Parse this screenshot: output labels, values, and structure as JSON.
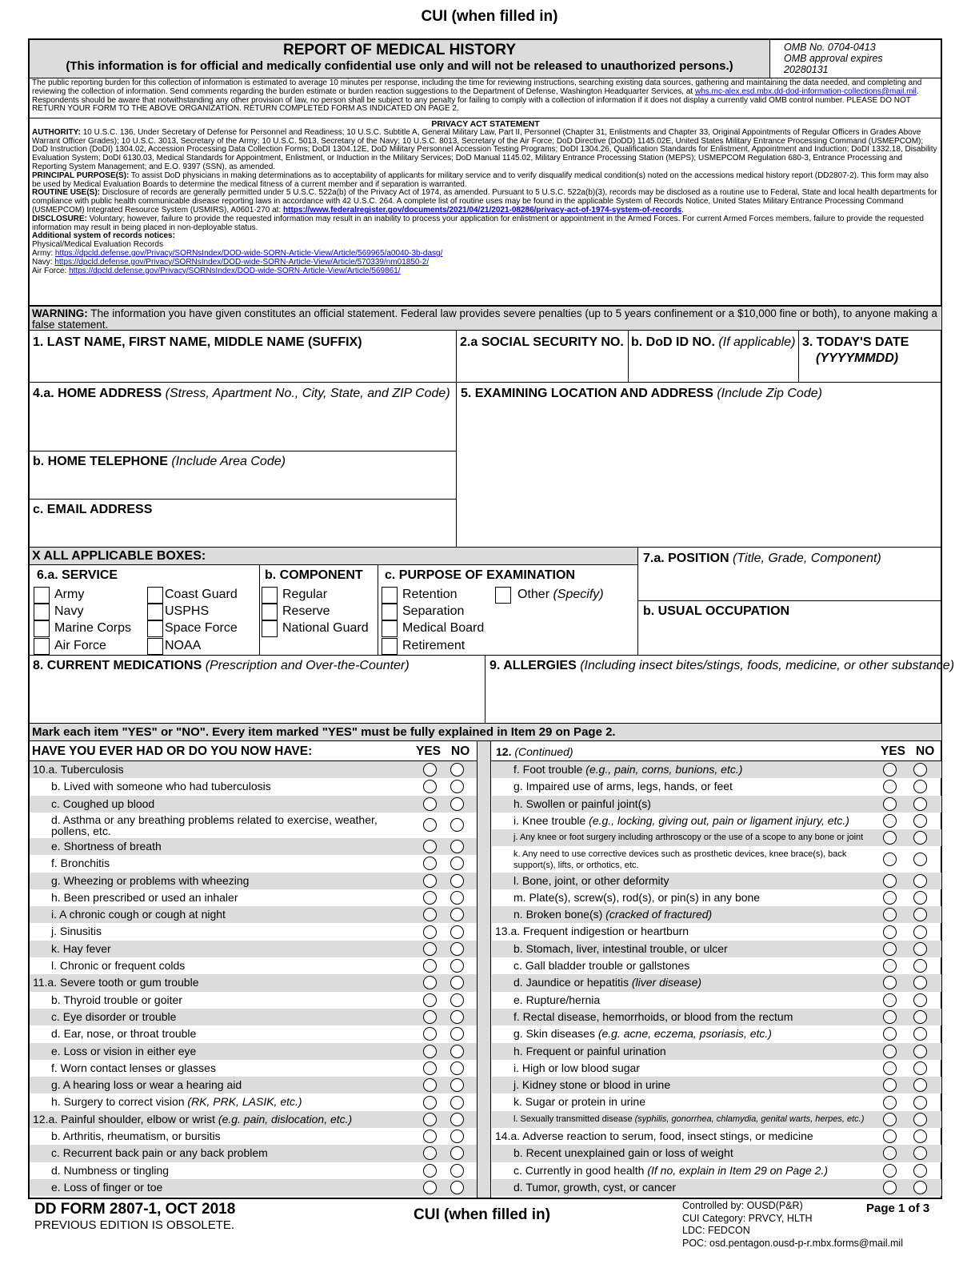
{
  "cui_top": "CUI (when filled in)",
  "header": {
    "title": "REPORT OF MEDICAL HISTORY",
    "subtitle": "(This information is for official and medically confidential use only and will not be released to unauthorized persons.)",
    "omb_no": "OMB No. 0704-0413",
    "omb_expires": "OMB approval expires",
    "omb_date": "20280131"
  },
  "burden": {
    "text": "The public reporting burden for this collection of information is estimated to average 10 minutes per response, including the time for reviewing instructions, searching existing data sources, gathering and maintaining the data needed, and completing and reviewing the collection of information. Send comments regarding the burden estimate or burden reaction suggestions to the Department of Defense, Washington Headquarter Services, at ",
    "email": "whs.mc-alex.esd.mbx.dd-dod-information-collections@mail.mil",
    "text2": ". Respondents should be aware that notwithstanding any other provision of law, no person shall be subject to any penalty for failing to comply with a collection of information if it does not display a currently valid OMB control number. PLEASE DO NOT RETURN YOUR FORM TO THE ABOVE ORGANIZATION. RETURN COMPLETED FORM AS INDICATED ON PAGE 2."
  },
  "privacy": {
    "title": "PRIVACY ACT STATEMENT",
    "authority_label": "AUTHORITY:",
    "authority": " 10 U.S.C. 136, Under Secretary of Defense for Personnel and Readiness; 10 U.S.C. Subtitle A, General Military Law, Part II, Personnel (Chapter 31, Enlistments and Chapter 33, Original Appointments of Regular Officers in Grades Above Warrant Officer Grades); 10 U.S.C. 3013, Secretary of the Army; 10 U.S.C. 5013, Secretary of the Navy; 10 U.S.C. 8013, Secretary of the Air Force; DoD Directive (DoDD) 1145.02E, United States Military Entrance Processing Command (USMEPCOM); DoD Instruction (DoDI) 1304.02, Accession Processing Data Collection Forms; DoDI 1304.12E, DoD Military Personnel Accession Testing Programs; DoDI 1304.26, Qualification Standards for Enlistment, Appointment and Induction; DoDI 1332.18, Disability Evaluation System; DoDI 6130.03, Medical Standards for Appointment, Enlistment, or Induction in the Military Services; DoD Manual 1145.02, Military Entrance Processing Station (MEPS); USMEPCOM Regulation 680-3, Entrance Processing and Reporting System Management; and E.O. 9397 (SSN), as amended.",
    "purpose_label": "PRINCIPAL PURPOSE(S):",
    "purpose": " To assist DoD physicians in making determinations as to acceptability of applicants for military service and to verify disqualify medical condition(s) noted on the accessions medical history report (DD2807-2). This form may also be used by Medical Evaluation Boards to determine the medical fitness of a current member and if separation is warranted.",
    "routine_label": "ROUTINE USE(S):",
    "routine": " Disclosure of records are generally permitted under 5 U.S.C. 522a(b) of the Privacy Act of 1974, as amended. Pursuant to 5 U.S.C. 522a(b)(3), records may be disclosed as a routine use to Federal, State and local health departments for compliance with public health communicable disease reporting laws in accordance with 42 U.S.C. 264. A complete list of routine uses may be found in the applicable System of Records Notice, United States Military Entrance Processing Command (USMEPCOM) Integrated Resource System (USMIRS), A0601-270 at: ",
    "routine_link": "https://www.federalregister.gov/documents/2021/04/21/2021-08286/privacy-act-of-1974-system-of-records",
    "disclosure_label": "DISCLOSURE:",
    "disclosure": " Voluntary; however, failure to provide the requested information may result in an inability to process your application for enlistment or appointment in the Armed Forces. For current Armed Forces members, failure to provide the requested information may result in being placed in non-deployable status.",
    "additional_label": "Additional system of records notices:",
    "additional_sub": "Physical/Medical Evaluation Records",
    "army_label": "Army: ",
    "army_link": "https://dpcld.defense.gov/Privacy/SORNsIndex/DOD-wide-SORN-Article-View/Article/569965/a0040-3b-dasg/",
    "navy_label": "Navy: ",
    "navy_link": "https://dpcld.defense.gov/Privacy/SORNsIndex/DOD-wide-SORN-Article-View/Article/570339/nm01850-2/",
    "af_label": "Air Force: ",
    "af_link": "https://dpcld.defense.gov/Privacy/SORNsIndex/DOD-wide-SORN-Article-View/Article/569861/"
  },
  "warning": {
    "label": "WARNING:",
    "text": " The information you have given constitutes an official statement. Federal law provides severe penalties (up to 5 years confinement or a $10,000 fine or both), to anyone making a false statement."
  },
  "fields": {
    "name": "1. LAST NAME, FIRST NAME, MIDDLE NAME (SUFFIX)",
    "ssn": "2.a SOCIAL SECURITY NO.",
    "dodid": "b. DoD ID NO.",
    "dodid_note": "(If applicable)",
    "date": "3. TODAY'S DATE",
    "date_note": "(YYYYMMDD)",
    "address": "4.a. HOME ADDRESS",
    "address_note": "(Stress, Apartment No., City, State, and ZIP Code)",
    "exam_loc": "5. EXAMINING LOCATION AND ADDRESS",
    "exam_loc_note": "(Include Zip Code)",
    "phone": "b. HOME TELEPHONE",
    "phone_note": "(Include Area Code)",
    "email": "c. EMAIL ADDRESS",
    "x_all": "X ALL APPLICABLE BOXES:",
    "position": "7.a. POSITION",
    "position_note": "(Title, Grade, Component)",
    "occupation": "b. USUAL OCCUPATION",
    "meds": "8. CURRENT MEDICATIONS",
    "meds_note": "(Prescription and Over-the-Counter)",
    "allergies": "9. ALLERGIES",
    "allergies_note": "(Including insect bites/stings, foods, medicine, or other substance)"
  },
  "service": {
    "title": "6.a. SERVICE",
    "col1": [
      "Army",
      "Navy",
      "Marine Corps",
      "Air Force"
    ],
    "col2": [
      "Coast Guard",
      "USPHS",
      "Space Force",
      "NOAA"
    ]
  },
  "component": {
    "title": "b. COMPONENT",
    "items": [
      "Regular",
      "Reserve",
      "National Guard"
    ]
  },
  "purpose": {
    "title": "c. PURPOSE OF EXAMINATION",
    "items": [
      "Retention",
      "Separation",
      "Medical Board",
      "Retirement"
    ],
    "other": "Other",
    "other_note": "(Specify)"
  },
  "instructions": "Mark each item \"YES\" or \"NO\". Every item marked \"YES\" must be fully explained in Item 29 on Page 2.",
  "checklist": {
    "left_header": "HAVE YOU EVER HAD OR DO YOU NOW HAVE:",
    "right_header": "12.",
    "right_header_note": "(Continued)",
    "yes": "YES",
    "no": "NO",
    "left": [
      {
        "t": "10.a. Tuberculosis"
      },
      {
        "t": "b. Lived with someone who had tuberculosis"
      },
      {
        "t": "c. Coughed up blood"
      },
      {
        "t": "d. Asthma or any breathing problems related to exercise, weather, pollens, etc.",
        "tall": true
      },
      {
        "t": "e. Shortness of breath"
      },
      {
        "t": "f. Bronchitis"
      },
      {
        "t": "g. Wheezing or problems with wheezing"
      },
      {
        "t": "h. Been prescribed or used an inhaler"
      },
      {
        "t": "i. A chronic cough or cough at night"
      },
      {
        "t": "j. Sinusitis"
      },
      {
        "t": "k. Hay fever"
      },
      {
        "t": "l. Chronic or frequent colds"
      },
      {
        "t": "11.a. Severe tooth or gum trouble"
      },
      {
        "t": "b. Thyroid trouble or goiter"
      },
      {
        "t": "c. Eye disorder or trouble"
      },
      {
        "t": "d. Ear, nose, or throat trouble"
      },
      {
        "t": "e. Loss or vision in either eye"
      },
      {
        "t": "f. Worn contact lenses or glasses"
      },
      {
        "t": "g. A hearing loss or wear a hearing aid"
      },
      {
        "t": "h. Surgery to correct vision ",
        "n": "(RK, PRK, LASIK, etc.)"
      },
      {
        "t": "12.a. Painful shoulder, elbow or wrist ",
        "n": "(e.g. pain, dislocation, etc.)"
      },
      {
        "t": "b. Arthritis, rheumatism, or bursitis"
      },
      {
        "t": "c. Recurrent back pain or any back problem"
      },
      {
        "t": "d. Numbness or tingling"
      },
      {
        "t": "e. Loss of finger or toe"
      }
    ],
    "right": [
      {
        "t": "f. Foot trouble ",
        "n": "(e.g., pain, corns, bunions, etc.)"
      },
      {
        "t": "g. Impaired use of arms, legs, hands, or feet"
      },
      {
        "t": "h. Swollen or painful joint(s)"
      },
      {
        "t": "i. Knee trouble ",
        "n": "(e.g., locking, giving out, pain or ligament injury, etc.)"
      },
      {
        "t": "j. Any knee or foot surgery including arthroscopy or the use of a scope to any bone or joint",
        "small": true
      },
      {
        "t": "k. Any need to use corrective devices such as prosthetic devices, knee brace(s), back support(s), lifts, or orthotics, etc.",
        "small": true,
        "tall": true
      },
      {
        "t": "l. Bone, joint, or other deformity"
      },
      {
        "t": "m. Plate(s), screw(s), rod(s), or pin(s) in any bone"
      },
      {
        "t": "n. Broken bone(s) ",
        "n": "(cracked of fractured)"
      },
      {
        "t": "13.a. Frequent indigestion or heartburn"
      },
      {
        "t": "b. Stomach, liver, intestinal trouble, or ulcer"
      },
      {
        "t": "c. Gall bladder trouble or gallstones"
      },
      {
        "t": "d. Jaundice or hepatitis ",
        "n": "(liver disease)"
      },
      {
        "t": "e. Rupture/hernia"
      },
      {
        "t": "f. Rectal disease, hemorrhoids, or blood from the rectum"
      },
      {
        "t": "g. Skin diseases ",
        "n": "(e.g. acne, eczema, psoriasis, etc.)"
      },
      {
        "t": "h. Frequent or painful urination"
      },
      {
        "t": "i. High or low blood sugar"
      },
      {
        "t": "j. Kidney stone or blood in urine"
      },
      {
        "t": "k. Sugar or protein in urine"
      },
      {
        "t": "l. Sexually transmitted disease ",
        "n": "(syphilis, gonorrhea, chlamydia, genital warts, herpes, etc.)",
        "small": true
      },
      {
        "t": "14.a. Adverse reaction to serum, food, insect stings, or medicine"
      },
      {
        "t": "b. Recent unexplained gain or loss of weight"
      },
      {
        "t": "c. Currently in good health ",
        "n": "(If no, explain in Item 29 on Page 2.)"
      },
      {
        "t": "d. Tumor, growth, cyst, or cancer"
      }
    ]
  },
  "footer": {
    "form": "DD FORM 2807-1, OCT 2018",
    "obsolete": "PREVIOUS EDITION IS OBSOLETE.",
    "cui": "CUI (when filled in)",
    "controlled": "Controlled by: OUSD(P&R)",
    "category": "CUI Category: PRVCY, HLTH",
    "ldc": "LDC: FEDCON",
    "poc": "POC: osd.pentagon.ousd-p-r.mbx.forms@mail.mil",
    "page": "Page 1 of 3"
  },
  "colors": {
    "shade": "#dcdcdc",
    "link": "#0000ee"
  }
}
